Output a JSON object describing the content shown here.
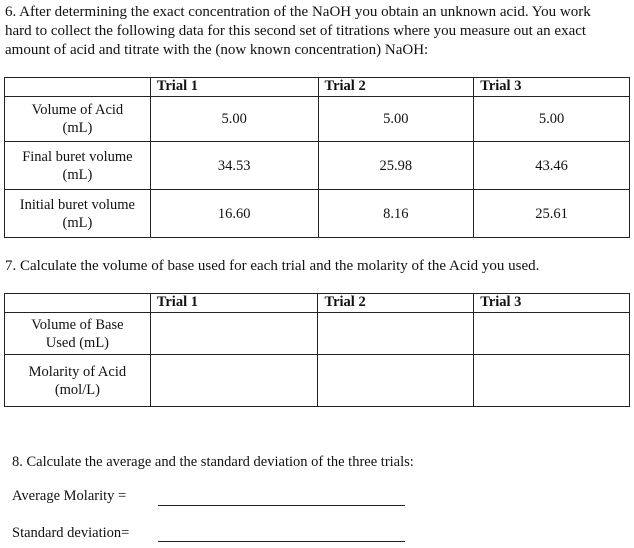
{
  "q6": {
    "lines": [
      "6. After determining the exact concentration of the NaOH you obtain an unknown acid. You work",
      "hard to collect the following data for this second set of titrations where you measure out an exact",
      "amount of acid and titrate with the (now known concentration) NaOH:"
    ]
  },
  "table1": {
    "headers": [
      "",
      "Trial 1",
      "Trial 2",
      "Trial 3"
    ],
    "rows": [
      {
        "label1": "Volume of Acid",
        "label2": "(mL)",
        "values": [
          "5.00",
          "5.00",
          "5.00"
        ]
      },
      {
        "label1": "Final buret volume",
        "label2": "(mL)",
        "values": [
          "34.53",
          "25.98",
          "43.46"
        ]
      },
      {
        "label1": "Initial buret volume",
        "label2": "(mL)",
        "values": [
          "16.60",
          "8.16",
          "25.61"
        ]
      }
    ]
  },
  "q7": {
    "text": "7. Calculate the volume of base used for each trial and the molarity of the Acid you used."
  },
  "table2": {
    "headers": [
      "",
      "Trial 1",
      "Trial 2",
      "Trial 3"
    ],
    "rows": [
      {
        "label1": "Volume of Base",
        "label2": "Used (mL)",
        "values": [
          "",
          "",
          ""
        ]
      },
      {
        "label1": "Molarity of Acid",
        "label2": "(mol/L)",
        "values": [
          "",
          "",
          ""
        ]
      }
    ]
  },
  "q8": {
    "text": "8. Calculate the average and the standard deviation of the three trials:",
    "average_label": "Average Molarity =",
    "stdev_label": "Standard deviation="
  }
}
